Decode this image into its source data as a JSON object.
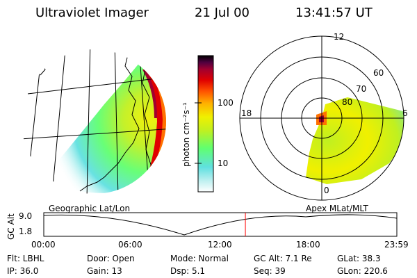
{
  "header": {
    "title": "Ultraviolet Imager",
    "date": "21 Jul 00",
    "time": "13:41:57 UT"
  },
  "colorbar": {
    "unit_label": "photon cm⁻²s⁻¹",
    "ticks": [
      "100",
      "10"
    ],
    "stops": [
      "#ffffff",
      "#bff0f0",
      "#60e0e0",
      "#60ff70",
      "#c0f020",
      "#f0f000",
      "#ffb000",
      "#ff5000",
      "#e00000",
      "#a00030",
      "#500040",
      "#000000"
    ]
  },
  "panels": {
    "left_label": "Geographic Lat/Lon",
    "right_label": "Apex MLat/MLT"
  },
  "polar": {
    "lat_labels": [
      "60",
      "70",
      "80"
    ],
    "mlt_labels": [
      "12",
      "18",
      "6",
      "0"
    ]
  },
  "altitude_plot": {
    "ylabel": "GC Alt",
    "ymax": "9.0",
    "ymin": "1.8",
    "x_ticks": [
      "00:00",
      "06:00",
      "12:00",
      "18:00",
      "23:59"
    ],
    "current_time_fraction": 0.571,
    "cursor_color": "#ff0000"
  },
  "info": {
    "row1": {
      "flt": "Flt: LBHL",
      "door": "Door: Open",
      "mode": "Mode: Normal",
      "gcalt": "GC Alt: 7.1 Re",
      "glat": "GLat:  38.3"
    },
    "row2": {
      "ip": "IP: 36.0",
      "gain": "Gain: 13",
      "dsp": "Dsp:    5.1",
      "seq": "Seq: 39",
      "glon": "GLon: 220.6"
    }
  }
}
